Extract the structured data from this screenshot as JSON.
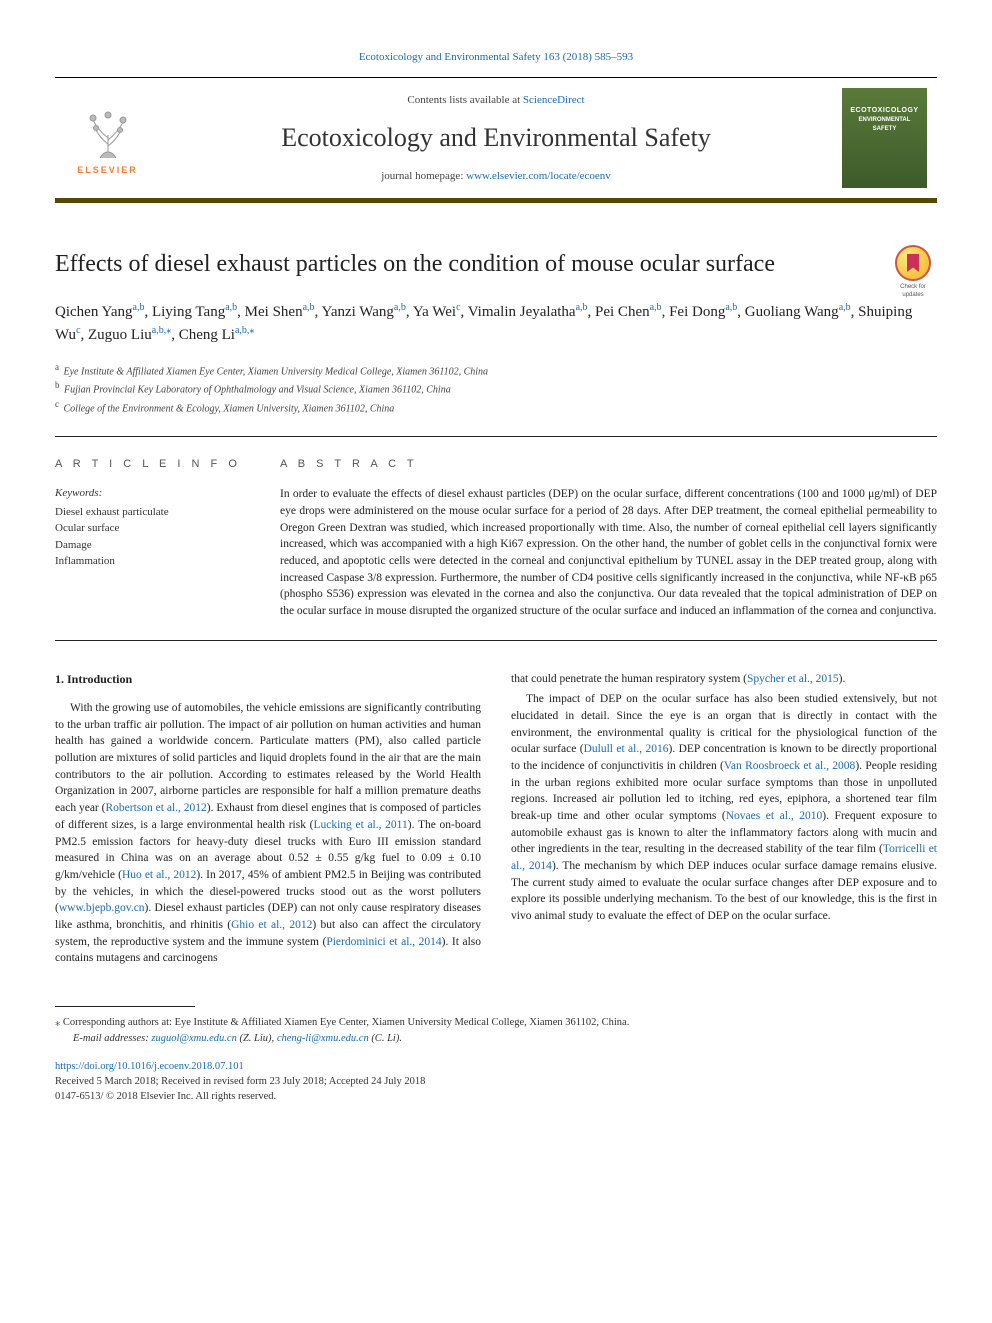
{
  "header": {
    "citation": "Ecotoxicology and Environmental Safety 163 (2018) 585–593",
    "contents_prefix": "Contents lists available at ",
    "contents_link": "ScienceDirect",
    "journal_title": "Ecotoxicology and Environmental Safety",
    "homepage_prefix": "journal homepage: ",
    "homepage_link": "www.elsevier.com/locate/ecoenv",
    "publisher": "ELSEVIER",
    "cover_line1": "ECOTOXICOLOGY",
    "cover_line2": "ENVIRONMENTAL",
    "cover_line3": "SAFETY",
    "check_label": "Check for updates"
  },
  "article": {
    "title": "Effects of diesel exhaust particles on the condition of mouse ocular surface"
  },
  "authors": [
    {
      "name": "Qichen Yang",
      "aff": "a,b"
    },
    {
      "name": "Liying Tang",
      "aff": "a,b"
    },
    {
      "name": "Mei Shen",
      "aff": "a,b"
    },
    {
      "name": "Yanzi Wang",
      "aff": "a,b"
    },
    {
      "name": "Ya Wei",
      "aff": "c"
    },
    {
      "name": "Vimalin Jeyalatha",
      "aff": "a,b"
    },
    {
      "name": "Pei Chen",
      "aff": "a,b"
    },
    {
      "name": "Fei Dong",
      "aff": "a,b"
    },
    {
      "name": "Guoliang Wang",
      "aff": "a,b"
    },
    {
      "name": "Shuiping Wu",
      "aff": "c"
    },
    {
      "name": "Zuguo Liu",
      "aff": "a,b,",
      "star": true
    },
    {
      "name": "Cheng Li",
      "aff": "a,b,",
      "star": true
    }
  ],
  "affiliations": [
    {
      "key": "a",
      "text": "Eye Institute & Affiliated Xiamen Eye Center, Xiamen University Medical College, Xiamen 361102, China"
    },
    {
      "key": "b",
      "text": "Fujian Provincial Key Laboratory of Ophthalmology and Visual Science, Xiamen 361102, China"
    },
    {
      "key": "c",
      "text": "College of the Environment & Ecology, Xiamen University, Xiamen 361102, China"
    }
  ],
  "info": {
    "article_info_label": "A R T I C L E  I N F O",
    "abstract_label": "A B S T R A C T",
    "keywords_label": "Keywords:",
    "keywords": [
      "Diesel exhaust particulate",
      "Ocular surface",
      "Damage",
      "Inflammation"
    ]
  },
  "abstract_text": "In order to evaluate the effects of diesel exhaust particles (DEP) on the ocular surface, different concentrations (100 and 1000 μg/ml) of DEP eye drops were administered on the mouse ocular surface for a period of 28 days. After DEP treatment, the corneal epithelial permeability to Oregon Green Dextran was studied, which increased proportionally with time. Also, the number of corneal epithelial cell layers significantly increased, which was accompanied with a high Ki67 expression. On the other hand, the number of goblet cells in the conjunctival fornix were reduced, and apoptotic cells were detected in the corneal and conjunctival epithelium by TUNEL assay in the DEP treated group, along with increased Caspase 3/8 expression. Furthermore, the number of CD4 positive cells significantly increased in the conjunctiva, while NF-κB p65 (phospho S536) expression was elevated in the cornea and also the conjunctiva. Our data revealed that the topical administration of DEP on the ocular surface in mouse disrupted the organized structure of the ocular surface and induced an inflammation of the cornea and conjunctiva.",
  "body": {
    "heading": "1. Introduction",
    "left": [
      {
        "text": "With the growing use of automobiles, the vehicle emissions are significantly contributing to the urban traffic air pollution. The impact of air pollution on human activities and human health has gained a worldwide concern. Particulate matters (PM), also called particle pollution are mixtures of solid particles and liquid droplets found in the air that are the main contributors to the air pollution. According to estimates released by the World Health Organization in 2007, airborne particles are responsible for half a million premature deaths each year (",
        "link": "Robertson et al., 2012",
        "after": "). Exhaust from diesel engines that is composed of particles of different sizes, is a large environmental health risk ("
      },
      {
        "link": "Lucking et al., 2011",
        "after": "). The on-board PM2.5 emission factors for heavy-duty diesel trucks with Euro III emission standard measured in China was on an average about 0.52 ± 0.55 g/kg fuel to 0.09 ± 0.10 g/km/vehicle ("
      },
      {
        "link": "Huo et al., 2012",
        "after": "). In 2017, 45% of ambient PM2.5 in Beijing was contributed by the vehicles, in which the diesel-powered trucks stood out as the worst polluters ("
      },
      {
        "link": "www.bjepb.gov.cn",
        "after": "). Diesel exhaust particles (DEP) can not only cause respiratory diseases like asthma, bronchitis, and rhinitis ("
      },
      {
        "link": "Ghio et al., 2012",
        "after": ") but also can affect the circulatory system, the reproductive system and the immune system ("
      },
      {
        "link": "Pierdominici et al., 2014",
        "after": "). It also contains mutagens and carcinogens"
      }
    ],
    "right": [
      {
        "text": "that could penetrate the human respiratory system (",
        "link": "Spycher et al., 2015",
        "after": ")."
      },
      {
        "para": true,
        "text": "The impact of DEP on the ocular surface has also been studied extensively, but not elucidated in detail. Since the eye is an organ that is directly in contact with the environment, the environmental quality is critical for the physiological function of the ocular surface (",
        "link": "Dulull et al., 2016",
        "after": "). DEP concentration is known to be directly proportional to the incidence of conjunctivitis in children ("
      },
      {
        "link": "Van Roosbroeck et al., 2008",
        "after": "). People residing in the urban regions exhibited more ocular surface symptoms than those in unpolluted regions. Increased air pollution led to itching, red eyes, epiphora, a shortened tear film break-up time and other ocular symptoms ("
      },
      {
        "link": "Novaes et al., 2010",
        "after": "). Frequent exposure to automobile exhaust gas is known to alter the inflammatory factors along with mucin and other ingredients in the tear, resulting in the decreased stability of the tear film ("
      },
      {
        "link": "Torricelli et al., 2014",
        "after": "). The mechanism by which DEP induces ocular surface damage remains elusive. The current study aimed to evaluate the ocular surface changes after DEP exposure and to explore its possible underlying mechanism. To the best of our knowledge, this is the first in vivo animal study to evaluate the effect of DEP on the ocular surface."
      }
    ]
  },
  "footer": {
    "corr_text": " Corresponding authors at: Eye Institute & Affiliated Xiamen Eye Center, Xiamen University Medical College, Xiamen 361102, China.",
    "email_label": "E-mail addresses: ",
    "email1": "zuguol@xmu.edu.cn",
    "email1_name": " (Z. Liu), ",
    "email2": "cheng-li@xmu.edu.cn",
    "email2_name": " (C. Li).",
    "doi": "https://doi.org/10.1016/j.ecoenv.2018.07.101",
    "received": "Received 5 March 2018; Received in revised form 23 July 2018; Accepted 24 July 2018",
    "copyright": "0147-6513/ © 2018 Elsevier Inc. All rights reserved."
  },
  "colors": {
    "link": "#1a6bb5",
    "banner_border": "#574701",
    "elsevier_orange": "#f47d30",
    "cover_green_top": "#5a7a3a",
    "cover_green_bottom": "#3d5a2a"
  }
}
